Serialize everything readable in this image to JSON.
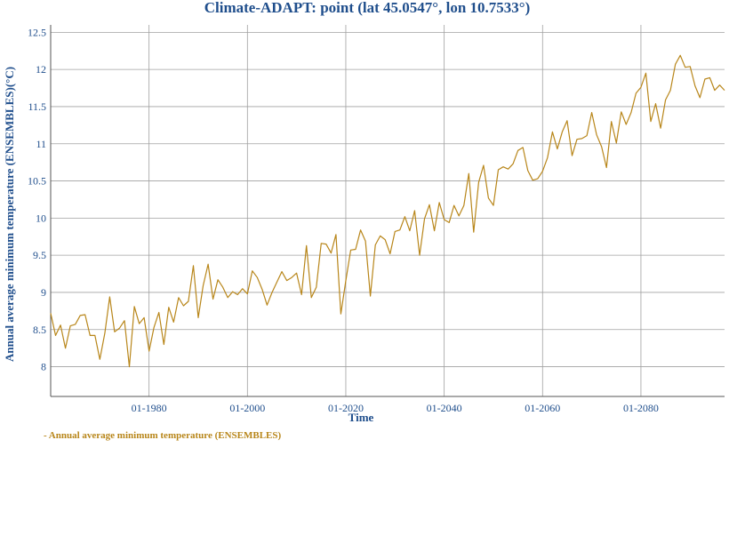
{
  "chart_data": {
    "type": "line",
    "title": "Climate-ADAPT: point (lat 45.0547°, lon 10.7533°)",
    "xlabel": "Time",
    "ylabel": "Annual average minimum temperature (ENSEMBLES)(°C)",
    "xlim": [
      1960,
      2097
    ],
    "ylim": [
      7.6,
      12.6
    ],
    "x_tick_labels": [
      "01-1980",
      "01-2000",
      "01-2020",
      "01-2040",
      "01-2060",
      "01-2080"
    ],
    "x_tick_values": [
      1980,
      2000,
      2020,
      2040,
      2060,
      2080
    ],
    "y_ticks": [
      8,
      8.5,
      9,
      9.5,
      10,
      10.5,
      11,
      11.5,
      12,
      12.5
    ],
    "y_tick_labels": [
      "8",
      "8.5",
      "9",
      "9.5",
      "10",
      "10.5",
      "11",
      "11.5",
      "12",
      "12.5"
    ],
    "grid": true,
    "legend_position": "bottom-left",
    "series": [
      {
        "name": "Annual average minimum temperature (ENSEMBLES)",
        "color": "#b8861a",
        "x": [
          1960,
          1961,
          1962,
          1963,
          1964,
          1965,
          1966,
          1967,
          1968,
          1969,
          1970,
          1971,
          1972,
          1973,
          1974,
          1975,
          1976,
          1977,
          1978,
          1979,
          1980,
          1981,
          1982,
          1983,
          1984,
          1985,
          1986,
          1987,
          1988,
          1989,
          1990,
          1991,
          1992,
          1993,
          1994,
          1995,
          1996,
          1997,
          1998,
          1999,
          2000,
          2001,
          2002,
          2003,
          2004,
          2005,
          2006,
          2007,
          2008,
          2009,
          2010,
          2011,
          2012,
          2013,
          2014,
          2015,
          2016,
          2017,
          2018,
          2019,
          2020,
          2021,
          2022,
          2023,
          2024,
          2025,
          2026,
          2027,
          2028,
          2029,
          2030,
          2031,
          2032,
          2033,
          2034,
          2035,
          2036,
          2037,
          2038,
          2039,
          2040,
          2041,
          2042,
          2043,
          2044,
          2045,
          2046,
          2047,
          2048,
          2049,
          2050,
          2051,
          2052,
          2053,
          2054,
          2055,
          2056,
          2057,
          2058,
          2059,
          2060,
          2061,
          2062,
          2063,
          2064,
          2065,
          2066,
          2067,
          2068,
          2069,
          2070,
          2071,
          2072,
          2073,
          2074,
          2075,
          2076,
          2077,
          2078,
          2079,
          2080,
          2081,
          2082,
          2083,
          2084,
          2085,
          2086,
          2087,
          2088,
          2089,
          2090,
          2091,
          2092,
          2093,
          2094,
          2095,
          2096,
          2097
        ],
        "y": [
          8.72,
          8.42,
          8.56,
          8.25,
          8.55,
          8.57,
          8.69,
          8.7,
          8.42,
          8.42,
          8.1,
          8.45,
          8.94,
          8.47,
          8.52,
          8.62,
          8.0,
          8.81,
          8.58,
          8.66,
          8.21,
          8.53,
          8.73,
          8.3,
          8.8,
          8.6,
          8.93,
          8.82,
          8.88,
          9.36,
          8.66,
          9.09,
          9.38,
          8.91,
          9.17,
          9.07,
          8.93,
          9.01,
          8.97,
          9.05,
          8.98,
          9.29,
          9.2,
          9.04,
          8.83,
          9.0,
          9.14,
          9.28,
          9.16,
          9.2,
          9.26,
          8.97,
          9.63,
          8.93,
          9.07,
          9.66,
          9.65,
          9.53,
          9.78,
          8.71,
          9.16,
          9.57,
          9.58,
          9.84,
          9.69,
          8.95,
          9.64,
          9.76,
          9.71,
          9.52,
          9.82,
          9.84,
          10.02,
          9.83,
          10.1,
          9.5,
          9.99,
          10.18,
          9.83,
          10.21,
          9.98,
          9.94,
          10.17,
          10.03,
          10.17,
          10.6,
          9.81,
          10.48,
          10.71,
          10.27,
          10.17,
          10.65,
          10.69,
          10.66,
          10.73,
          10.91,
          10.95,
          10.64,
          10.51,
          10.53,
          10.63,
          10.81,
          11.16,
          10.93,
          11.16,
          11.31,
          10.84,
          11.06,
          11.07,
          11.11,
          11.42,
          11.12,
          10.96,
          10.68,
          11.3,
          11.01,
          11.43,
          11.26,
          11.42,
          11.68,
          11.76,
          11.95,
          11.3,
          11.54,
          11.21,
          11.59,
          11.72,
          12.07,
          12.19,
          12.03,
          12.04,
          11.78,
          11.62,
          11.87,
          11.89,
          11.72,
          11.79,
          11.72
        ]
      }
    ]
  }
}
